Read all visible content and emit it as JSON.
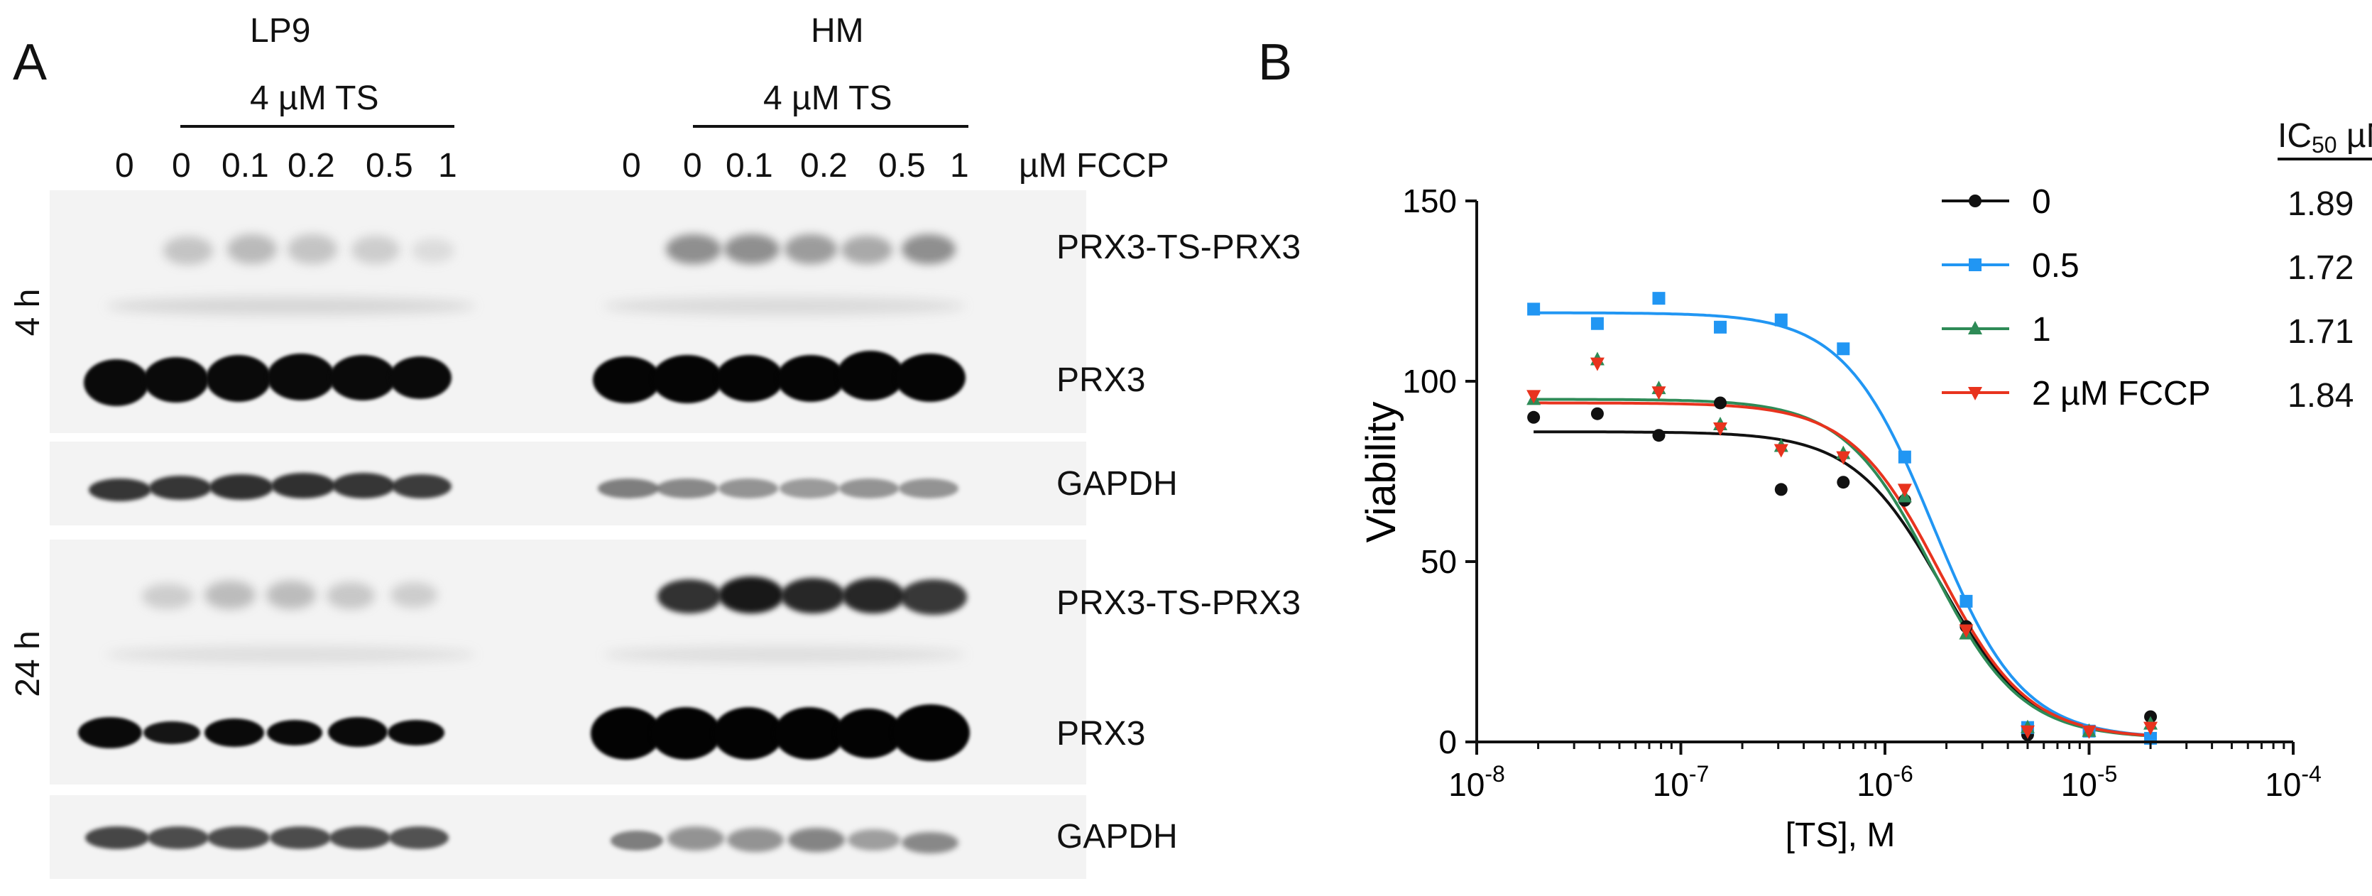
{
  "panel_a": {
    "letter": "A",
    "cell_lines": [
      "LP9",
      "HM"
    ],
    "treatment_label": "4 µM TS",
    "fccp_lanes": [
      "0",
      "0",
      "0.1",
      "0.2",
      "0.5",
      "1"
    ],
    "fccp_unit": "µM FCCP",
    "time_labels": [
      "4 h",
      "24 h"
    ],
    "band_labels": {
      "dimer": "PRX3-TS-PRX3",
      "monomer": "PRX3",
      "loading": "GAPDH"
    }
  },
  "panel_b": {
    "letter": "B",
    "ic50_header_main": "IC",
    "ic50_header_sub": "50",
    "ic50_header_unit": " µM",
    "legend": [
      {
        "label": "0",
        "marker": "circle",
        "color": "#111111",
        "ic50": "1.89"
      },
      {
        "label": "0.5",
        "marker": "square",
        "color": "#2196f3",
        "ic50": "1.72"
      },
      {
        "label": "1",
        "marker": "triangle-up",
        "color": "#2e8b57",
        "ic50": "1.71"
      },
      {
        "label": "2  µM FCCP",
        "marker": "triangle-down",
        "color": "#e8331e",
        "ic50": "1.84"
      }
    ]
  },
  "chart_data": {
    "type": "scatter",
    "xlabel": "[TS], M",
    "ylabel": "Viability",
    "xscale": "log",
    "xlim": [
      1e-08,
      0.0001
    ],
    "ylim": [
      0,
      150
    ],
    "x_ticks": [
      "10-8",
      "10-7",
      "10-6",
      "10-5",
      "10-4"
    ],
    "y_ticks": [
      "0",
      "50",
      "100",
      "150"
    ],
    "legend_placement": "top-right",
    "x": [
      1.9e-08,
      3.9e-08,
      7.8e-08,
      1.56e-07,
      3.1e-07,
      6.25e-07,
      1.25e-06,
      2.5e-06,
      5e-06,
      1e-05,
      2e-05
    ],
    "series": [
      {
        "name": "0",
        "color": "#111111",
        "marker": "circle",
        "values": [
          90,
          91,
          85,
          94,
          70,
          72,
          67,
          32,
          2,
          3,
          7
        ],
        "fit": {
          "top": 86,
          "bottom": 1,
          "ic50": 1.89e-06,
          "hill": 2.0
        }
      },
      {
        "name": "0.5",
        "color": "#2196f3",
        "marker": "square",
        "values": [
          120,
          116,
          123,
          115,
          117,
          109,
          79,
          39,
          4,
          3,
          1
        ],
        "fit": {
          "top": 119,
          "bottom": 1,
          "ic50": 1.72e-06,
          "hill": 2.0
        }
      },
      {
        "name": "1",
        "color": "#2e8b57",
        "marker": "triangle-up",
        "values": [
          95,
          106,
          98,
          88,
          82,
          80,
          68,
          30,
          4,
          3,
          5
        ],
        "fit": {
          "top": 95,
          "bottom": 1,
          "ic50": 1.71e-06,
          "hill": 2.0
        }
      },
      {
        "name": "2  µM FCCP",
        "color": "#e8331e",
        "marker": "triangle-down",
        "values": [
          96,
          105,
          97,
          87,
          81,
          79,
          70,
          31,
          3,
          3,
          4
        ],
        "fit": {
          "top": 94,
          "bottom": 1,
          "ic50": 1.84e-06,
          "hill": 2.0
        }
      }
    ]
  }
}
